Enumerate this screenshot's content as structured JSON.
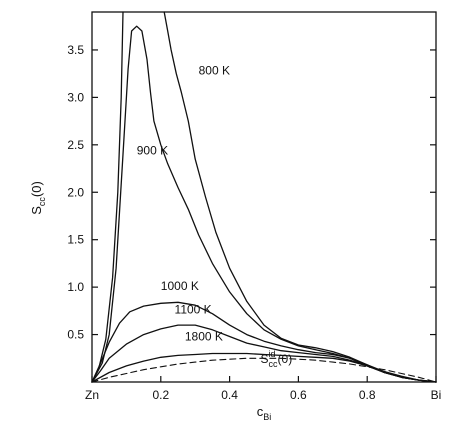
{
  "chart_data": {
    "type": "line",
    "title": "",
    "xlabel": {
      "main": "c",
      "sub": "Bi"
    },
    "ylabel": {
      "main": "S",
      "sub": "cc",
      "suffix": "(0)"
    },
    "xlim": [
      0,
      1
    ],
    "ylim": [
      0,
      3.9
    ],
    "x_ticks": [
      {
        "value": 0.0,
        "label": "Zn"
      },
      {
        "value": 0.2,
        "label": "0.2"
      },
      {
        "value": 0.4,
        "label": "0.4"
      },
      {
        "value": 0.6,
        "label": "0.6"
      },
      {
        "value": 0.8,
        "label": "0.8"
      },
      {
        "value": 1.0,
        "label": "Bi"
      }
    ],
    "y_ticks": [
      {
        "value": 0.5,
        "label": "0.5"
      },
      {
        "value": 1.0,
        "label": "1.0"
      },
      {
        "value": 1.5,
        "label": "1.5"
      },
      {
        "value": 2.0,
        "label": "2.0"
      },
      {
        "value": 2.5,
        "label": "2.5"
      },
      {
        "value": 3.0,
        "label": "3.0"
      },
      {
        "value": 3.5,
        "label": "3.5"
      }
    ],
    "grid": false,
    "series": [
      {
        "name": "800 K",
        "label_at": {
          "x": 0.31,
          "y": 3.24
        },
        "points": [
          [
            0,
            0
          ],
          [
            0.02,
            0.15
          ],
          [
            0.04,
            0.45
          ],
          [
            0.06,
            1.1
          ],
          [
            0.075,
            2.0
          ],
          [
            0.085,
            3.0
          ],
          [
            0.09,
            3.9
          ],
          null,
          [
            0.21,
            3.9
          ],
          [
            0.22,
            3.7
          ],
          [
            0.23,
            3.5
          ],
          [
            0.245,
            3.25
          ],
          [
            0.26,
            3.05
          ],
          [
            0.28,
            2.75
          ],
          [
            0.3,
            2.35
          ],
          [
            0.33,
            1.95
          ],
          [
            0.36,
            1.58
          ],
          [
            0.4,
            1.2
          ],
          [
            0.45,
            0.85
          ],
          [
            0.5,
            0.6
          ],
          [
            0.55,
            0.46
          ],
          [
            0.6,
            0.39
          ],
          [
            0.65,
            0.36
          ],
          [
            0.7,
            0.32
          ],
          [
            0.75,
            0.26
          ],
          [
            0.8,
            0.18
          ],
          [
            0.85,
            0.1
          ],
          [
            0.9,
            0.05
          ],
          [
            0.95,
            0.02
          ],
          [
            1.0,
            0
          ]
        ]
      },
      {
        "name": "900 K",
        "label_at": {
          "x": 0.13,
          "y": 2.4
        },
        "points": [
          [
            0,
            0
          ],
          [
            0.03,
            0.2
          ],
          [
            0.05,
            0.5
          ],
          [
            0.07,
            1.2
          ],
          [
            0.09,
            2.4
          ],
          [
            0.105,
            3.3
          ],
          [
            0.115,
            3.7
          ],
          [
            0.13,
            3.75
          ],
          [
            0.145,
            3.7
          ],
          [
            0.16,
            3.4
          ],
          [
            0.17,
            3.05
          ],
          [
            0.18,
            2.75
          ],
          [
            0.2,
            2.5
          ],
          [
            0.22,
            2.3
          ],
          [
            0.25,
            2.05
          ],
          [
            0.28,
            1.82
          ],
          [
            0.31,
            1.55
          ],
          [
            0.35,
            1.25
          ],
          [
            0.4,
            0.95
          ],
          [
            0.45,
            0.72
          ],
          [
            0.5,
            0.55
          ],
          [
            0.55,
            0.45
          ],
          [
            0.6,
            0.38
          ],
          [
            0.65,
            0.34
          ],
          [
            0.7,
            0.3
          ],
          [
            0.75,
            0.25
          ],
          [
            0.8,
            0.17
          ],
          [
            0.85,
            0.1
          ],
          [
            0.9,
            0.05
          ],
          [
            0.95,
            0.02
          ],
          [
            1.0,
            0
          ]
        ]
      },
      {
        "name": "1000 K",
        "label_at": {
          "x": 0.2,
          "y": 0.97
        },
        "points": [
          [
            0,
            0
          ],
          [
            0.025,
            0.2
          ],
          [
            0.05,
            0.42
          ],
          [
            0.08,
            0.62
          ],
          [
            0.11,
            0.74
          ],
          [
            0.15,
            0.8
          ],
          [
            0.2,
            0.83
          ],
          [
            0.25,
            0.84
          ],
          [
            0.3,
            0.81
          ],
          [
            0.35,
            0.72
          ],
          [
            0.4,
            0.6
          ],
          [
            0.45,
            0.5
          ],
          [
            0.5,
            0.43
          ],
          [
            0.55,
            0.38
          ],
          [
            0.6,
            0.34
          ],
          [
            0.65,
            0.31
          ],
          [
            0.7,
            0.29
          ],
          [
            0.75,
            0.25
          ],
          [
            0.8,
            0.18
          ],
          [
            0.85,
            0.11
          ],
          [
            0.9,
            0.05
          ],
          [
            0.95,
            0.02
          ],
          [
            1.0,
            0
          ]
        ]
      },
      {
        "name": "1100 K",
        "label_at": {
          "x": 0.24,
          "y": 0.72
        },
        "points": [
          [
            0,
            0
          ],
          [
            0.025,
            0.12
          ],
          [
            0.05,
            0.25
          ],
          [
            0.1,
            0.4
          ],
          [
            0.15,
            0.5
          ],
          [
            0.2,
            0.56
          ],
          [
            0.25,
            0.6
          ],
          [
            0.3,
            0.6
          ],
          [
            0.35,
            0.55
          ],
          [
            0.4,
            0.48
          ],
          [
            0.45,
            0.41
          ],
          [
            0.5,
            0.37
          ],
          [
            0.55,
            0.33
          ],
          [
            0.6,
            0.31
          ],
          [
            0.65,
            0.29
          ],
          [
            0.7,
            0.27
          ],
          [
            0.75,
            0.23
          ],
          [
            0.8,
            0.17
          ],
          [
            0.85,
            0.1
          ],
          [
            0.9,
            0.05
          ],
          [
            0.95,
            0.02
          ],
          [
            1.0,
            0
          ]
        ]
      },
      {
        "name": "1800 K",
        "label_at": {
          "x": 0.27,
          "y": 0.44
        },
        "points": [
          [
            0,
            0
          ],
          [
            0.05,
            0.1
          ],
          [
            0.1,
            0.17
          ],
          [
            0.15,
            0.22
          ],
          [
            0.2,
            0.26
          ],
          [
            0.25,
            0.28
          ],
          [
            0.3,
            0.29
          ],
          [
            0.35,
            0.3
          ],
          [
            0.4,
            0.3
          ],
          [
            0.45,
            0.3
          ],
          [
            0.5,
            0.29
          ],
          [
            0.55,
            0.28
          ],
          [
            0.6,
            0.27
          ],
          [
            0.65,
            0.26
          ],
          [
            0.7,
            0.25
          ],
          [
            0.75,
            0.22
          ],
          [
            0.8,
            0.17
          ],
          [
            0.85,
            0.11
          ],
          [
            0.9,
            0.06
          ],
          [
            0.95,
            0.02
          ],
          [
            1.0,
            0
          ]
        ]
      },
      {
        "name": "S_cc^id(0)",
        "label_parts": {
          "main": "S",
          "sub": "cc",
          "sup": "id",
          "suffix": "(0)"
        },
        "label_at": {
          "x": 0.49,
          "y": 0.2
        },
        "style": "dashed",
        "points": [
          [
            0,
            0
          ],
          [
            0.05,
            0.05
          ],
          [
            0.1,
            0.09
          ],
          [
            0.15,
            0.13
          ],
          [
            0.2,
            0.16
          ],
          [
            0.25,
            0.19
          ],
          [
            0.3,
            0.21
          ],
          [
            0.35,
            0.23
          ],
          [
            0.4,
            0.24
          ],
          [
            0.45,
            0.25
          ],
          [
            0.5,
            0.25
          ],
          [
            0.55,
            0.25
          ],
          [
            0.6,
            0.24
          ],
          [
            0.65,
            0.23
          ],
          [
            0.7,
            0.21
          ],
          [
            0.75,
            0.19
          ],
          [
            0.8,
            0.16
          ],
          [
            0.85,
            0.13
          ],
          [
            0.9,
            0.09
          ],
          [
            0.95,
            0.05
          ],
          [
            1.0,
            0
          ]
        ]
      }
    ]
  }
}
